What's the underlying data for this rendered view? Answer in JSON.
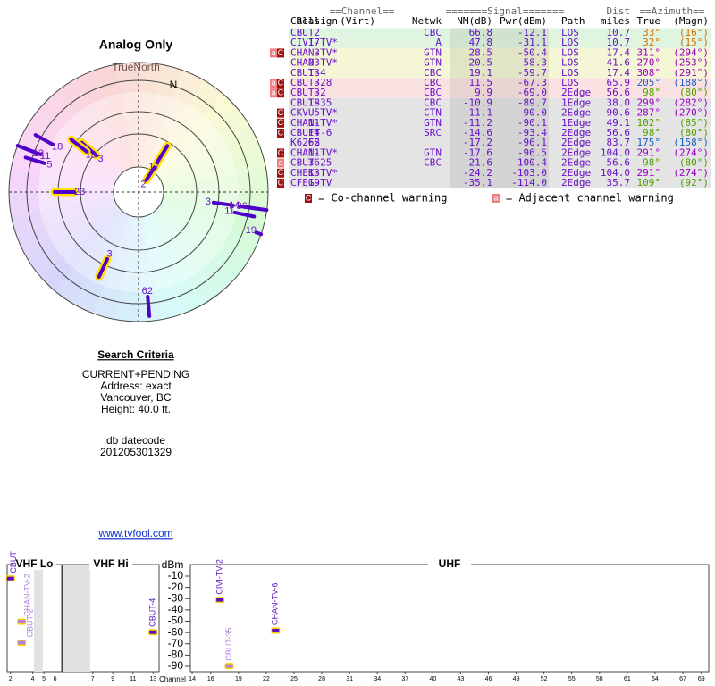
{
  "title": "Analog Only",
  "north_label": "TrueNorth",
  "magnetic_north_label": "N",
  "search": {
    "title": "Search Criteria",
    "lines": [
      "CURRENT+PENDING",
      "Address: exact",
      "Vancouver, BC",
      "Height: 40.0 ft."
    ],
    "datecode_label": "db datecode",
    "datecode": "201205301329"
  },
  "link": "www.tvfool.com",
  "table": {
    "header_top": [
      "==Channel==",
      "=======Signal=======",
      "Dist",
      "==Azimuth=="
    ],
    "columns": [
      "Callsign",
      "Real",
      "(Virt)",
      "Netwk",
      "NM(dB)",
      "Pwr(dBm)",
      "Path",
      "miles",
      "True",
      "(Magn)"
    ],
    "rows": [
      {
        "callsign": "CBUT",
        "real": 2,
        "netwk": "CBC",
        "nm": 66.8,
        "pwr": "-12.1",
        "path": "LOS",
        "dist": "10.7",
        "az": {
          "value": 33,
          "label": "33°"
        },
        "magn": "(16°)",
        "az_color": "#d07000",
        "bg": "#dff5df"
      },
      {
        "callsign": "CIVI-TV*",
        "real": 17,
        "netwk": "A",
        "nm": 47.8,
        "pwr": "-31.1",
        "path": "LOS",
        "dist": "10.7",
        "az": {
          "value": 32,
          "label": "32°"
        },
        "magn": "(15°)",
        "az_color": "#d07000",
        "bg": "#dff5df"
      },
      {
        "callsign": "CHAN-TV*",
        "real": 3,
        "netwk": "GTN",
        "nm": 28.5,
        "pwr": "-50.4",
        "path": "LOS",
        "dist": "17.4",
        "az": {
          "value": 311,
          "label": "311°"
        },
        "magn": "(294°)",
        "az_color": "#9a00c0",
        "bg": "#f4f6d6",
        "warn": [
          "a",
          "C"
        ]
      },
      {
        "callsign": "CHAN-TV*",
        "real": 23,
        "netwk": "GTN",
        "nm": 20.5,
        "pwr": "-58.3",
        "path": "LOS",
        "dist": "41.6",
        "az": {
          "value": 270,
          "label": "270°"
        },
        "magn": "(253°)",
        "az_color": "#9a00c0",
        "bg": "#f4f6d6"
      },
      {
        "callsign": "CBUT-4",
        "real": 13,
        "netwk": "CBC",
        "nm": 19.1,
        "pwr": "-59.7",
        "path": "LOS",
        "dist": "17.4",
        "az": {
          "value": 308,
          "label": "308°"
        },
        "magn": "(291°)",
        "az_color": "#9a00c0",
        "bg": "#f4f6d6"
      },
      {
        "callsign": "CBUT-28",
        "real": 3,
        "netwk": "CBC",
        "nm": 11.5,
        "pwr": "-67.3",
        "path": "LOS",
        "dist": "65.9",
        "az": {
          "value": 205,
          "label": "205°"
        },
        "magn": "(188°)",
        "az_color": "#2060c0",
        "bg": "#fbe2e2",
        "warn": [
          "a",
          "C"
        ]
      },
      {
        "callsign": "CBUT-2",
        "real": 3,
        "netwk": "CBC",
        "nm": 9.9,
        "pwr": "-69.0",
        "path": "2Edge",
        "dist": "56.6",
        "az": {
          "value": 98,
          "label": "98°"
        },
        "magn": "(80°)",
        "az_color": "#50a000",
        "bg": "#fbe2e2",
        "warn": [
          "a",
          "C"
        ]
      },
      {
        "callsign": "CBUT-35",
        "real": 18,
        "netwk": "CBC",
        "nm": -10.9,
        "pwr": "-89.7",
        "path": "1Edge",
        "dist": "38.0",
        "az": {
          "value": 299,
          "label": "299°"
        },
        "magn": "(282°)",
        "az_color": "#9a00c0",
        "bg": "#e4e4e4"
      },
      {
        "callsign": "CKVU-TV*",
        "real": 5,
        "netwk": "CTN",
        "nm": -11.1,
        "pwr": "-90.0",
        "path": "2Edge",
        "dist": "90.6",
        "az": {
          "value": 287,
          "label": "287°"
        },
        "magn": "(270°)",
        "az_color": "#9a00c0",
        "bg": "#e4e4e4",
        "warn": [
          "C"
        ]
      },
      {
        "callsign": "CHAN-TV*",
        "real": 11,
        "netwk": "GTN",
        "nm": -11.2,
        "pwr": "-90.1",
        "path": "1Edge",
        "dist": "49.1",
        "az": {
          "value": 102,
          "label": "102°"
        },
        "magn": "(85°)",
        "az_color": "#50a000",
        "bg": "#e4e4e4",
        "warn": [
          "C"
        ]
      },
      {
        "callsign": "CBUFT-6",
        "real": 14,
        "netwk": "SRC",
        "nm": -14.6,
        "pwr": "-93.4",
        "path": "2Edge",
        "dist": "56.6",
        "az": {
          "value": 98,
          "label": "98°"
        },
        "magn": "(80°)",
        "az_color": "#50a000",
        "bg": "#e4e4e4",
        "warn": [
          "C"
        ]
      },
      {
        "callsign": "K62FS",
        "real": 62,
        "nm": -17.2,
        "pwr": "-96.1",
        "path": "2Edge",
        "dist": "83.7",
        "az": {
          "value": 175,
          "label": "175°"
        },
        "magn": "(158°)",
        "az_color": "#2060c0",
        "bg": "#e4e4e4"
      },
      {
        "callsign": "CHAN-TV*",
        "real": 11,
        "netwk": "GTN",
        "nm": -17.6,
        "pwr": "-96.5",
        "path": "2Edge",
        "dist": "104.0",
        "az": {
          "value": 291,
          "label": "291°"
        },
        "magn": "(274°)",
        "az_color": "#9a00c0",
        "bg": "#e4e4e4",
        "warn": [
          "C"
        ]
      },
      {
        "callsign": "CBUT-25",
        "real": 36,
        "netwk": "CBC",
        "nm": -21.6,
        "pwr": "-100.4",
        "path": "2Edge",
        "dist": "56.6",
        "az": {
          "value": 98,
          "label": "98°"
        },
        "magn": "(80°)",
        "az_color": "#50a000",
        "bg": "#e4e4e4",
        "warn": [
          "a"
        ]
      },
      {
        "callsign": "CHEK-TV*",
        "real": 13,
        "nm": -24.2,
        "pwr": "-103.0",
        "path": "2Edge",
        "dist": "104.0",
        "az": {
          "value": 291,
          "label": "291°"
        },
        "magn": "(274°)",
        "az_color": "#9a00c0",
        "bg": "#e4e4e4",
        "warn": [
          "C"
        ]
      },
      {
        "callsign": "CFEG-TV",
        "real": 19,
        "nm": -35.1,
        "pwr": "-114.0",
        "path": "2Edge",
        "dist": "35.7",
        "az": {
          "value": 109,
          "label": "109°"
        },
        "magn": "(92°)",
        "az_color": "#50a000",
        "bg": "#e4e4e4",
        "warn": [
          "C"
        ]
      }
    ]
  },
  "legend": {
    "co_badge": "C",
    "co_text": "= Co-channel warning",
    "adj_badge": "a",
    "adj_text": "= Adjacent channel warning"
  },
  "spectrum": {
    "y_label": "dBm",
    "x_label": "Channel",
    "ylim": [
      -5,
      -95
    ],
    "yticks": [
      -10,
      -20,
      -30,
      -40,
      -50,
      -60,
      -70,
      -80,
      -90
    ],
    "bands": [
      {
        "name": "VHF Lo",
        "xlim": [
          1.7,
          6.6
        ],
        "xticks": [
          2,
          4,
          5,
          6
        ]
      },
      {
        "name": "VHF Hi",
        "xlim": [
          4,
          13.6
        ],
        "xticks": [
          7,
          9,
          11,
          13
        ]
      },
      {
        "name": "UHF",
        "xlim": [
          13.8,
          69.8
        ],
        "xticks": [
          14,
          16,
          19,
          22,
          25,
          28,
          31,
          34,
          37,
          40,
          43,
          46,
          49,
          52,
          55,
          58,
          61,
          64,
          67,
          69
        ]
      }
    ],
    "stations": [
      {
        "name": "CBUT",
        "band": 0,
        "channel": 2,
        "dbm": -12.1,
        "color": "#5a10c0"
      },
      {
        "name": "CHAN-TV-2",
        "band": 0,
        "channel": 3,
        "dbm": -50.4,
        "color": "#b080e0"
      },
      {
        "name": "CBUT-2",
        "band": 0,
        "channel": 3,
        "dbm": -69.0,
        "color": "#b080e0"
      },
      {
        "name": "CBUT-4",
        "band": 1,
        "channel": 13,
        "dbm": -59.7,
        "color": "#5a10c0"
      },
      {
        "name": "CIVI-TV-2",
        "band": 2,
        "channel": 17,
        "dbm": -31.1,
        "color": "#5a10c0"
      },
      {
        "name": "CBUT-35",
        "band": 2,
        "channel": 18,
        "dbm": -89.7,
        "color": "#b080e0"
      },
      {
        "name": "CHAN-TV-6",
        "band": 2,
        "channel": 23,
        "dbm": -58.3,
        "color": "#5a10c0"
      }
    ]
  }
}
